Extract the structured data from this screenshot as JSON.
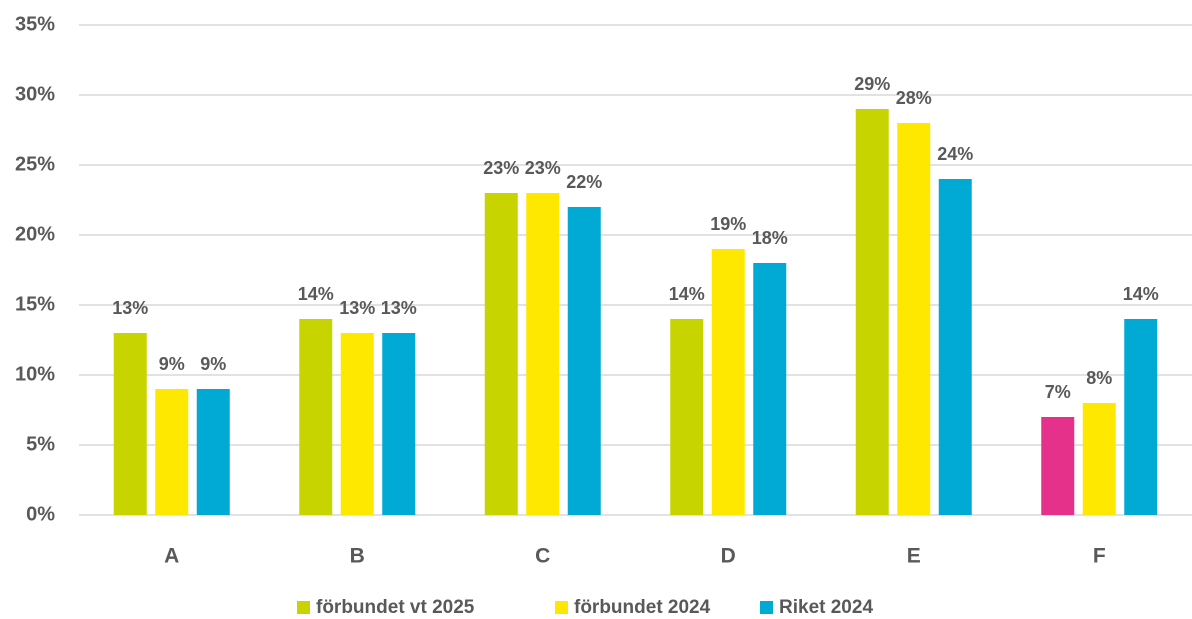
{
  "chart_data": {
    "type": "bar",
    "categories": [
      "A",
      "B",
      "C",
      "D",
      "E",
      "F"
    ],
    "series": [
      {
        "name": "förbundet vt 2025",
        "color": "#c8d400",
        "colors": [
          "#c8d400",
          "#c8d400",
          "#c8d400",
          "#c8d400",
          "#c8d400",
          "#e6318a"
        ],
        "values": [
          13,
          14,
          23,
          14,
          29,
          7
        ],
        "value_labels": [
          "13%",
          "14%",
          "23%",
          "14%",
          "29%",
          "7%"
        ]
      },
      {
        "name": "förbundet 2024",
        "color": "#ffe800",
        "values": [
          9,
          13,
          23,
          19,
          28,
          8
        ],
        "value_labels": [
          "9%",
          "13%",
          "23%",
          "19%",
          "28%",
          "8%"
        ]
      },
      {
        "name": "Riket 2024",
        "color": "#00aad4",
        "values": [
          9,
          13,
          22,
          18,
          24,
          14
        ],
        "value_labels": [
          "9%",
          "13%",
          "22%",
          "18%",
          "24%",
          "14%"
        ]
      }
    ],
    "ylim": [
      0,
      35
    ],
    "yticks": [
      {
        "value": 0,
        "label": "0%"
      },
      {
        "value": 5,
        "label": "5%"
      },
      {
        "value": 10,
        "label": "10%"
      },
      {
        "value": 15,
        "label": "15%"
      },
      {
        "value": 20,
        "label": "20%"
      },
      {
        "value": 25,
        "label": "25%"
      },
      {
        "value": 30,
        "label": "30%"
      },
      {
        "value": 35,
        "label": "35%"
      }
    ],
    "grid": true,
    "legend": "bottom"
  }
}
